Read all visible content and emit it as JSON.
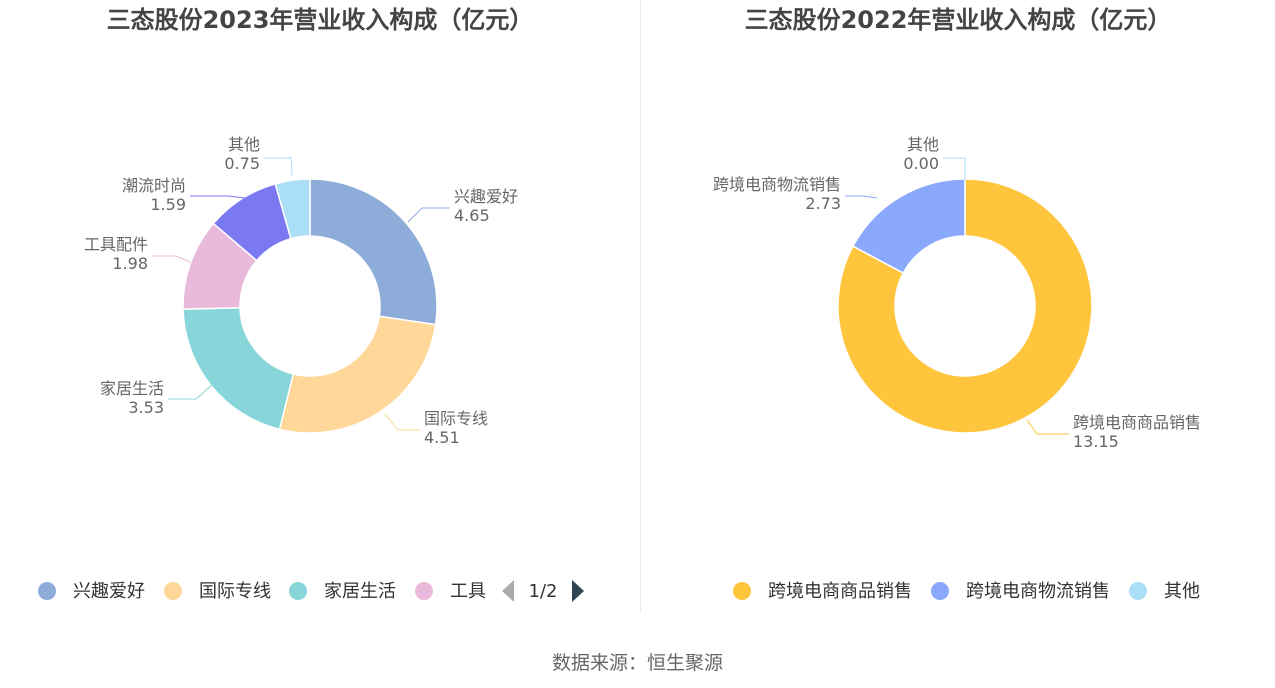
{
  "source_prefix": "数据来源：",
  "source_name": "恒生聚源",
  "chart_data": [
    {
      "type": "pie",
      "title": "三态股份2023年营业收入构成（亿元）",
      "categories": [
        "兴趣爱好",
        "国际专线",
        "家居生活",
        "工具配件",
        "潮流时尚",
        "其他"
      ],
      "values": [
        4.65,
        4.51,
        3.53,
        1.98,
        1.59,
        0.75
      ],
      "value_labels": [
        "4.65",
        "4.51",
        "3.53",
        "1.98",
        "1.59",
        "0.75"
      ],
      "colors": [
        "#8eacd9",
        "#ffd899",
        "#88d6da",
        "#e8b9da",
        "#7b79f2",
        "#aadff7"
      ],
      "legend_visible": [
        "兴趣爱好",
        "国际专线",
        "家居生活",
        "工具"
      ],
      "legend_page": "1/2",
      "legend_position": "bottom",
      "style": "donut"
    },
    {
      "type": "pie",
      "title": "三态股份2022年营业收入构成（亿元）",
      "categories": [
        "跨境电商商品销售",
        "跨境电商物流销售",
        "其他"
      ],
      "values": [
        13.15,
        2.73,
        0.0
      ],
      "value_labels": [
        "13.15",
        "2.73",
        "0.00"
      ],
      "colors": [
        "#ffc53d",
        "#8aa8fc",
        "#aadff7"
      ],
      "legend_visible": [
        "跨境电商商品销售",
        "跨境电商物流销售",
        "其他"
      ],
      "legend_position": "bottom",
      "style": "donut"
    }
  ]
}
